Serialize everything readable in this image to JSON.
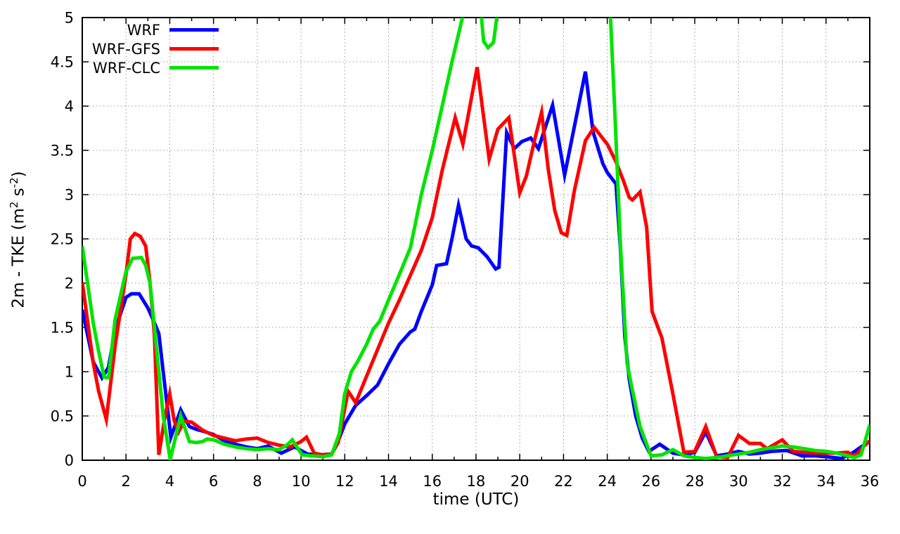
{
  "chart_data": {
    "type": "line",
    "xlabel": "time (UTC)",
    "ylabel_segments": [
      {
        "kind": "text",
        "value": "2m - TKE (m"
      },
      {
        "kind": "sup",
        "value": "2"
      },
      {
        "kind": "text",
        "value": " s"
      },
      {
        "kind": "sup",
        "value": "-2"
      },
      {
        "kind": "text",
        "value": ")"
      }
    ],
    "xlim": [
      0,
      36
    ],
    "ylim": [
      0,
      5
    ],
    "x_major_step": 2,
    "x_minor_step": 1,
    "y_major_step": 0.5,
    "grid": true,
    "grid_color": "#9a9a9a",
    "axis_color": "#000000",
    "legend_position": "top-left",
    "x_tick_labels": [
      [
        "0",
        0
      ],
      [
        "2",
        2
      ],
      [
        "4",
        4
      ],
      [
        "6",
        6
      ],
      [
        "8",
        8
      ],
      [
        "10",
        10
      ],
      [
        "12",
        12
      ],
      [
        "14",
        14
      ],
      [
        "16",
        16
      ],
      [
        "18",
        18
      ],
      [
        "20",
        20
      ],
      [
        "22",
        22
      ],
      [
        "24",
        24
      ],
      [
        "26",
        26
      ],
      [
        "28",
        28
      ],
      [
        "30",
        30
      ],
      [
        "32",
        32
      ],
      [
        "34",
        34
      ],
      [
        "36",
        36
      ]
    ],
    "y_tick_labels": [
      [
        "0",
        0
      ],
      [
        "0.5",
        0.5
      ],
      [
        "1",
        1
      ],
      [
        "1.5",
        1.5
      ],
      [
        "2",
        2
      ],
      [
        "2.5",
        2.5
      ],
      [
        "3",
        3
      ],
      [
        "3.5",
        3.5
      ],
      [
        "4",
        4
      ],
      [
        "4.5",
        4.5
      ],
      [
        "5",
        5
      ]
    ],
    "series": [
      {
        "name": "WRF",
        "color": "#0000ff",
        "points": [
          [
            0,
            1.7
          ],
          [
            0.5,
            1.11
          ],
          [
            0.9,
            0.93
          ],
          [
            1.2,
            1.05
          ],
          [
            1.5,
            1.47
          ],
          [
            2,
            1.84
          ],
          [
            2.25,
            1.88
          ],
          [
            2.6,
            1.88
          ],
          [
            3,
            1.72
          ],
          [
            3.25,
            1.58
          ],
          [
            3.5,
            1.43
          ],
          [
            3.7,
            1.0
          ],
          [
            4.05,
            0.26
          ],
          [
            4.5,
            0.57
          ],
          [
            4.9,
            0.38
          ],
          [
            5.2,
            0.35
          ],
          [
            5.5,
            0.33
          ],
          [
            6,
            0.29
          ],
          [
            6.5,
            0.22
          ],
          [
            7,
            0.18
          ],
          [
            7.5,
            0.15
          ],
          [
            8,
            0.13
          ],
          [
            8.5,
            0.16
          ],
          [
            9.1,
            0.08
          ],
          [
            9.7,
            0.15
          ],
          [
            10.3,
            0.07
          ],
          [
            10.8,
            0.06
          ],
          [
            11.4,
            0.07
          ],
          [
            11.75,
            0.25
          ],
          [
            12,
            0.41
          ],
          [
            12.5,
            0.62
          ],
          [
            13,
            0.73
          ],
          [
            13.5,
            0.85
          ],
          [
            14,
            1.09
          ],
          [
            14.5,
            1.31
          ],
          [
            15,
            1.45
          ],
          [
            15.2,
            1.48
          ],
          [
            15.5,
            1.68
          ],
          [
            16,
            1.98
          ],
          [
            16.2,
            2.2
          ],
          [
            16.65,
            2.22
          ],
          [
            16.9,
            2.5
          ],
          [
            17.2,
            2.88
          ],
          [
            17.55,
            2.5
          ],
          [
            17.8,
            2.42
          ],
          [
            18.1,
            2.4
          ],
          [
            18.5,
            2.3
          ],
          [
            18.9,
            2.16
          ],
          [
            19.05,
            2.18
          ],
          [
            19.4,
            3.7
          ],
          [
            19.75,
            3.52
          ],
          [
            20.1,
            3.6
          ],
          [
            20.5,
            3.64
          ],
          [
            20.85,
            3.52
          ],
          [
            21.5,
            4.01
          ],
          [
            22.05,
            3.22
          ],
          [
            22.45,
            3.71
          ],
          [
            23,
            4.39
          ],
          [
            23.35,
            3.71
          ],
          [
            23.8,
            3.35
          ],
          [
            24,
            3.25
          ],
          [
            24.4,
            3.12
          ],
          [
            24.6,
            2.4
          ],
          [
            24.8,
            1.4
          ],
          [
            25,
            0.92
          ],
          [
            25.3,
            0.5
          ],
          [
            25.6,
            0.25
          ],
          [
            25.9,
            0.1
          ],
          [
            26.4,
            0.18
          ],
          [
            27,
            0.08
          ],
          [
            27.5,
            0.06
          ],
          [
            28,
            0.09
          ],
          [
            28.5,
            0.32
          ],
          [
            29,
            0.05
          ],
          [
            29.5,
            0.07
          ],
          [
            30,
            0.1
          ],
          [
            30.5,
            0.07
          ],
          [
            31,
            0.08
          ],
          [
            31.5,
            0.1
          ],
          [
            32.2,
            0.11
          ],
          [
            32.9,
            0.05
          ],
          [
            33.5,
            0.05
          ],
          [
            34,
            0.04
          ],
          [
            34.7,
            0.02
          ],
          [
            35.2,
            0.08
          ],
          [
            35.6,
            0.15
          ],
          [
            36,
            0.21
          ]
        ]
      },
      {
        "name": "WRF-GFS",
        "color": "#ff0000",
        "points": [
          [
            0,
            2.01
          ],
          [
            0.5,
            1.1
          ],
          [
            0.75,
            0.78
          ],
          [
            1.1,
            0.46
          ],
          [
            1.5,
            1.29
          ],
          [
            2,
            2.1
          ],
          [
            2.2,
            2.5
          ],
          [
            2.4,
            2.56
          ],
          [
            2.65,
            2.53
          ],
          [
            2.9,
            2.42
          ],
          [
            3.1,
            2.0
          ],
          [
            3.3,
            1.4
          ],
          [
            3.5,
            0.06
          ],
          [
            3.75,
            0.45
          ],
          [
            4,
            0.75
          ],
          [
            4.2,
            0.45
          ],
          [
            4.4,
            0.32
          ],
          [
            4.65,
            0.44
          ],
          [
            5,
            0.43
          ],
          [
            5.5,
            0.34
          ],
          [
            6,
            0.28
          ],
          [
            6.5,
            0.25
          ],
          [
            7,
            0.22
          ],
          [
            7.5,
            0.24
          ],
          [
            8,
            0.25
          ],
          [
            8.5,
            0.2
          ],
          [
            9,
            0.17
          ],
          [
            9.5,
            0.15
          ],
          [
            10,
            0.21
          ],
          [
            10.25,
            0.26
          ],
          [
            10.6,
            0.08
          ],
          [
            11,
            0.06
          ],
          [
            11.4,
            0.07
          ],
          [
            11.7,
            0.2
          ],
          [
            12,
            0.58
          ],
          [
            12.15,
            0.78
          ],
          [
            12.5,
            0.65
          ],
          [
            13,
            0.95
          ],
          [
            13.5,
            1.25
          ],
          [
            14,
            1.55
          ],
          [
            14.5,
            1.81
          ],
          [
            15,
            2.09
          ],
          [
            15.5,
            2.37
          ],
          [
            16,
            2.74
          ],
          [
            16.45,
            3.27
          ],
          [
            17.05,
            3.87
          ],
          [
            17.4,
            3.57
          ],
          [
            18.05,
            4.44
          ],
          [
            18.6,
            3.4
          ],
          [
            19,
            3.74
          ],
          [
            19.5,
            3.87
          ],
          [
            20,
            3.02
          ],
          [
            20.3,
            3.21
          ],
          [
            20.7,
            3.64
          ],
          [
            21,
            3.93
          ],
          [
            21.3,
            3.29
          ],
          [
            21.6,
            2.82
          ],
          [
            21.9,
            2.57
          ],
          [
            22.15,
            2.54
          ],
          [
            22.5,
            3.05
          ],
          [
            23,
            3.61
          ],
          [
            23.4,
            3.76
          ],
          [
            24,
            3.57
          ],
          [
            24.4,
            3.37
          ],
          [
            24.75,
            3.15
          ],
          [
            25,
            2.97
          ],
          [
            25.15,
            2.94
          ],
          [
            25.5,
            3.03
          ],
          [
            25.8,
            2.63
          ],
          [
            26.05,
            1.68
          ],
          [
            26.5,
            1.38
          ],
          [
            27,
            0.75
          ],
          [
            27.5,
            0.09
          ],
          [
            28,
            0.1
          ],
          [
            28.5,
            0.38
          ],
          [
            29,
            0.04
          ],
          [
            29.5,
            0.03
          ],
          [
            30,
            0.28
          ],
          [
            30.5,
            0.19
          ],
          [
            31,
            0.19
          ],
          [
            31.3,
            0.13
          ],
          [
            32,
            0.23
          ],
          [
            32.5,
            0.1
          ],
          [
            33,
            0.09
          ],
          [
            33.5,
            0.08
          ],
          [
            34,
            0.08
          ],
          [
            34.5,
            0.08
          ],
          [
            35,
            0.09
          ],
          [
            35.3,
            0.04
          ],
          [
            35.7,
            0.15
          ],
          [
            36,
            0.22
          ]
        ]
      },
      {
        "name": "WRF-CLC",
        "color": "#00e400",
        "points": [
          [
            0,
            2.42
          ],
          [
            0.5,
            1.55
          ],
          [
            0.75,
            1.23
          ],
          [
            1,
            0.94
          ],
          [
            1.2,
            0.93
          ],
          [
            1.5,
            1.59
          ],
          [
            2,
            2.13
          ],
          [
            2.3,
            2.28
          ],
          [
            2.7,
            2.29
          ],
          [
            2.9,
            2.2
          ],
          [
            3.1,
            2.0
          ],
          [
            3.5,
            1.0
          ],
          [
            3.7,
            0.5
          ],
          [
            4.02,
            0.01
          ],
          [
            4.5,
            0.5
          ],
          [
            4.9,
            0.21
          ],
          [
            5.2,
            0.2
          ],
          [
            5.5,
            0.21
          ],
          [
            5.7,
            0.24
          ],
          [
            6,
            0.23
          ],
          [
            6.5,
            0.18
          ],
          [
            7,
            0.15
          ],
          [
            7.5,
            0.13
          ],
          [
            8,
            0.12
          ],
          [
            8.5,
            0.13
          ],
          [
            9,
            0.12
          ],
          [
            9.4,
            0.18
          ],
          [
            9.6,
            0.23
          ],
          [
            10.05,
            0.06
          ],
          [
            10.5,
            0.05
          ],
          [
            11,
            0.04
          ],
          [
            11.4,
            0.06
          ],
          [
            11.75,
            0.3
          ],
          [
            12,
            0.75
          ],
          [
            12.3,
            1.0
          ],
          [
            12.6,
            1.12
          ],
          [
            13,
            1.31
          ],
          [
            13.3,
            1.48
          ],
          [
            13.6,
            1.57
          ],
          [
            14,
            1.81
          ],
          [
            14.5,
            2.1
          ],
          [
            15,
            2.4
          ],
          [
            15.5,
            3.0
          ],
          [
            16,
            3.5
          ],
          [
            16.5,
            4.05
          ],
          [
            16.9,
            4.5
          ],
          [
            17.4,
            5.02
          ],
          [
            17.6,
            5.4
          ],
          [
            18.1,
            5.4
          ],
          [
            18.35,
            4.73
          ],
          [
            18.55,
            4.66
          ],
          [
            18.8,
            4.72
          ],
          [
            19,
            5.1
          ],
          [
            19.15,
            5.5
          ],
          [
            23.75,
            5.5
          ],
          [
            24.15,
            5.0
          ],
          [
            24.35,
            3.9
          ],
          [
            24.6,
            2.45
          ],
          [
            24.9,
            1.1
          ],
          [
            25.1,
            0.85
          ],
          [
            25.5,
            0.38
          ],
          [
            26,
            0.05
          ],
          [
            26.5,
            0.06
          ],
          [
            27,
            0.12
          ],
          [
            27.5,
            0.05
          ],
          [
            28,
            0.03
          ],
          [
            28.5,
            0.02
          ],
          [
            29,
            0.03
          ],
          [
            29.5,
            0.05
          ],
          [
            30,
            0.07
          ],
          [
            30.5,
            0.09
          ],
          [
            31,
            0.12
          ],
          [
            31.5,
            0.14
          ],
          [
            32,
            0.16
          ],
          [
            32.5,
            0.15
          ],
          [
            33,
            0.13
          ],
          [
            33.5,
            0.11
          ],
          [
            34,
            0.1
          ],
          [
            34.5,
            0.08
          ],
          [
            35,
            0.05
          ],
          [
            35.3,
            0.03
          ],
          [
            35.6,
            0.06
          ],
          [
            36,
            0.4
          ]
        ]
      }
    ]
  }
}
